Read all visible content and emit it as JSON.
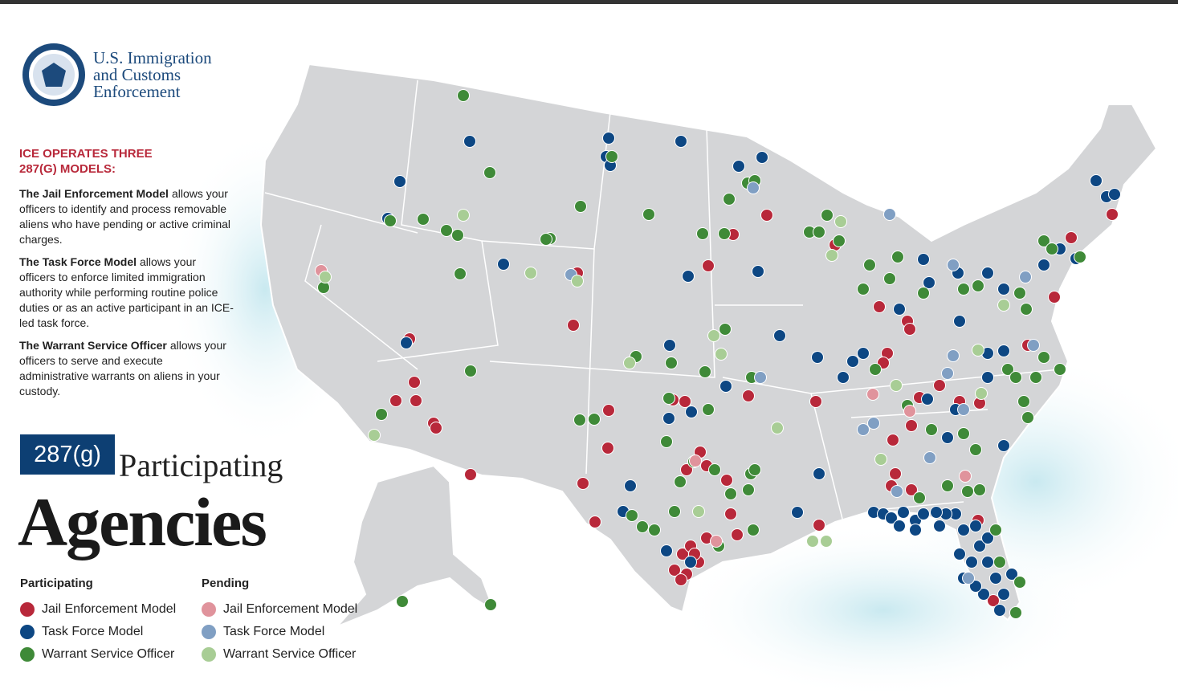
{
  "header": {
    "agency": [
      "U.S. Immigration",
      "and Customs",
      "Enforcement"
    ]
  },
  "intro": {
    "heading": "ICE OPERATES THREE 287(G) MODELS:",
    "models": [
      {
        "name": "The Jail Enforcement Model",
        "text": "allows your officers to identify and process removable aliens who have pending or active criminal charges."
      },
      {
        "name": "The Task Force Model",
        "text": "allows your officers to enforce limited immigration authority while performing routine police duties or as an active participant in an ICE-led task force."
      },
      {
        "name": "The Warrant Service Officer",
        "text": "allows your officers to serve and execute administrative warrants on aliens in your custody."
      }
    ]
  },
  "title": {
    "badge": "287(g)",
    "line1": "Participating",
    "line2": "Agencies"
  },
  "legend": {
    "groups": [
      {
        "title": "Participating",
        "items": [
          {
            "label": "Jail Enforcement Model",
            "color": "#b8283a"
          },
          {
            "label": "Task Force Model",
            "color": "#0d4783"
          },
          {
            "label": "Warrant Service Officer",
            "color": "#3f8a38"
          }
        ]
      },
      {
        "title": "Pending",
        "items": [
          {
            "label": "Jail Enforcement Model",
            "color": "#e0939c"
          },
          {
            "label": "Task Force Model",
            "color": "#809fc3"
          },
          {
            "label": "Warrant Service Officer",
            "color": "#a8cd95"
          }
        ]
      }
    ]
  }
}
